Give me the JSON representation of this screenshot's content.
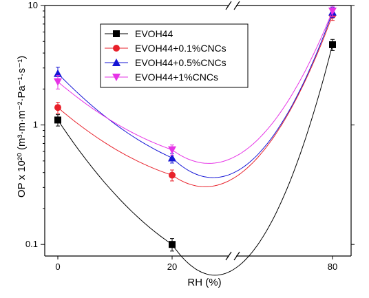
{
  "chart_data": {
    "type": "scatter",
    "xlabel": "RH (%)",
    "ylabel": "OP x 10²⁰ (m³·m·m⁻²·Pa⁻¹·s⁻¹)",
    "yscale": "log",
    "ylim": [
      0.08,
      10
    ],
    "x_axis": "broken axis between 20 and 80",
    "x": [
      0,
      20,
      80
    ],
    "x_ticks": [
      "0",
      "20",
      "80"
    ],
    "y_ticks": [
      "0.1",
      "1",
      "10"
    ],
    "legend_position": "top-left",
    "grid": false,
    "series": [
      {
        "name": "EVOH44",
        "color": "#000000",
        "marker": "square",
        "values": [
          1.1,
          0.1,
          4.7
        ],
        "errors": [
          0.12,
          0.012,
          0.5
        ]
      },
      {
        "name": "EVOH44+0.1%CNCs",
        "color": "#e8212b",
        "marker": "circle",
        "values": [
          1.4,
          0.38,
          8.3
        ],
        "errors": [
          0.15,
          0.04,
          0.8
        ]
      },
      {
        "name": "EVOH44+0.5%CNCs",
        "color": "#1515d6",
        "marker": "triangle-up",
        "values": [
          2.7,
          0.53,
          8.8
        ],
        "errors": [
          0.35,
          0.05,
          0.9
        ]
      },
      {
        "name": "EVOH44+1%CNCs",
        "color": "#e633e6",
        "marker": "triangle-down",
        "values": [
          2.3,
          0.62,
          9.0
        ],
        "errors": [
          0.3,
          0.06,
          0.9
        ]
      }
    ]
  }
}
